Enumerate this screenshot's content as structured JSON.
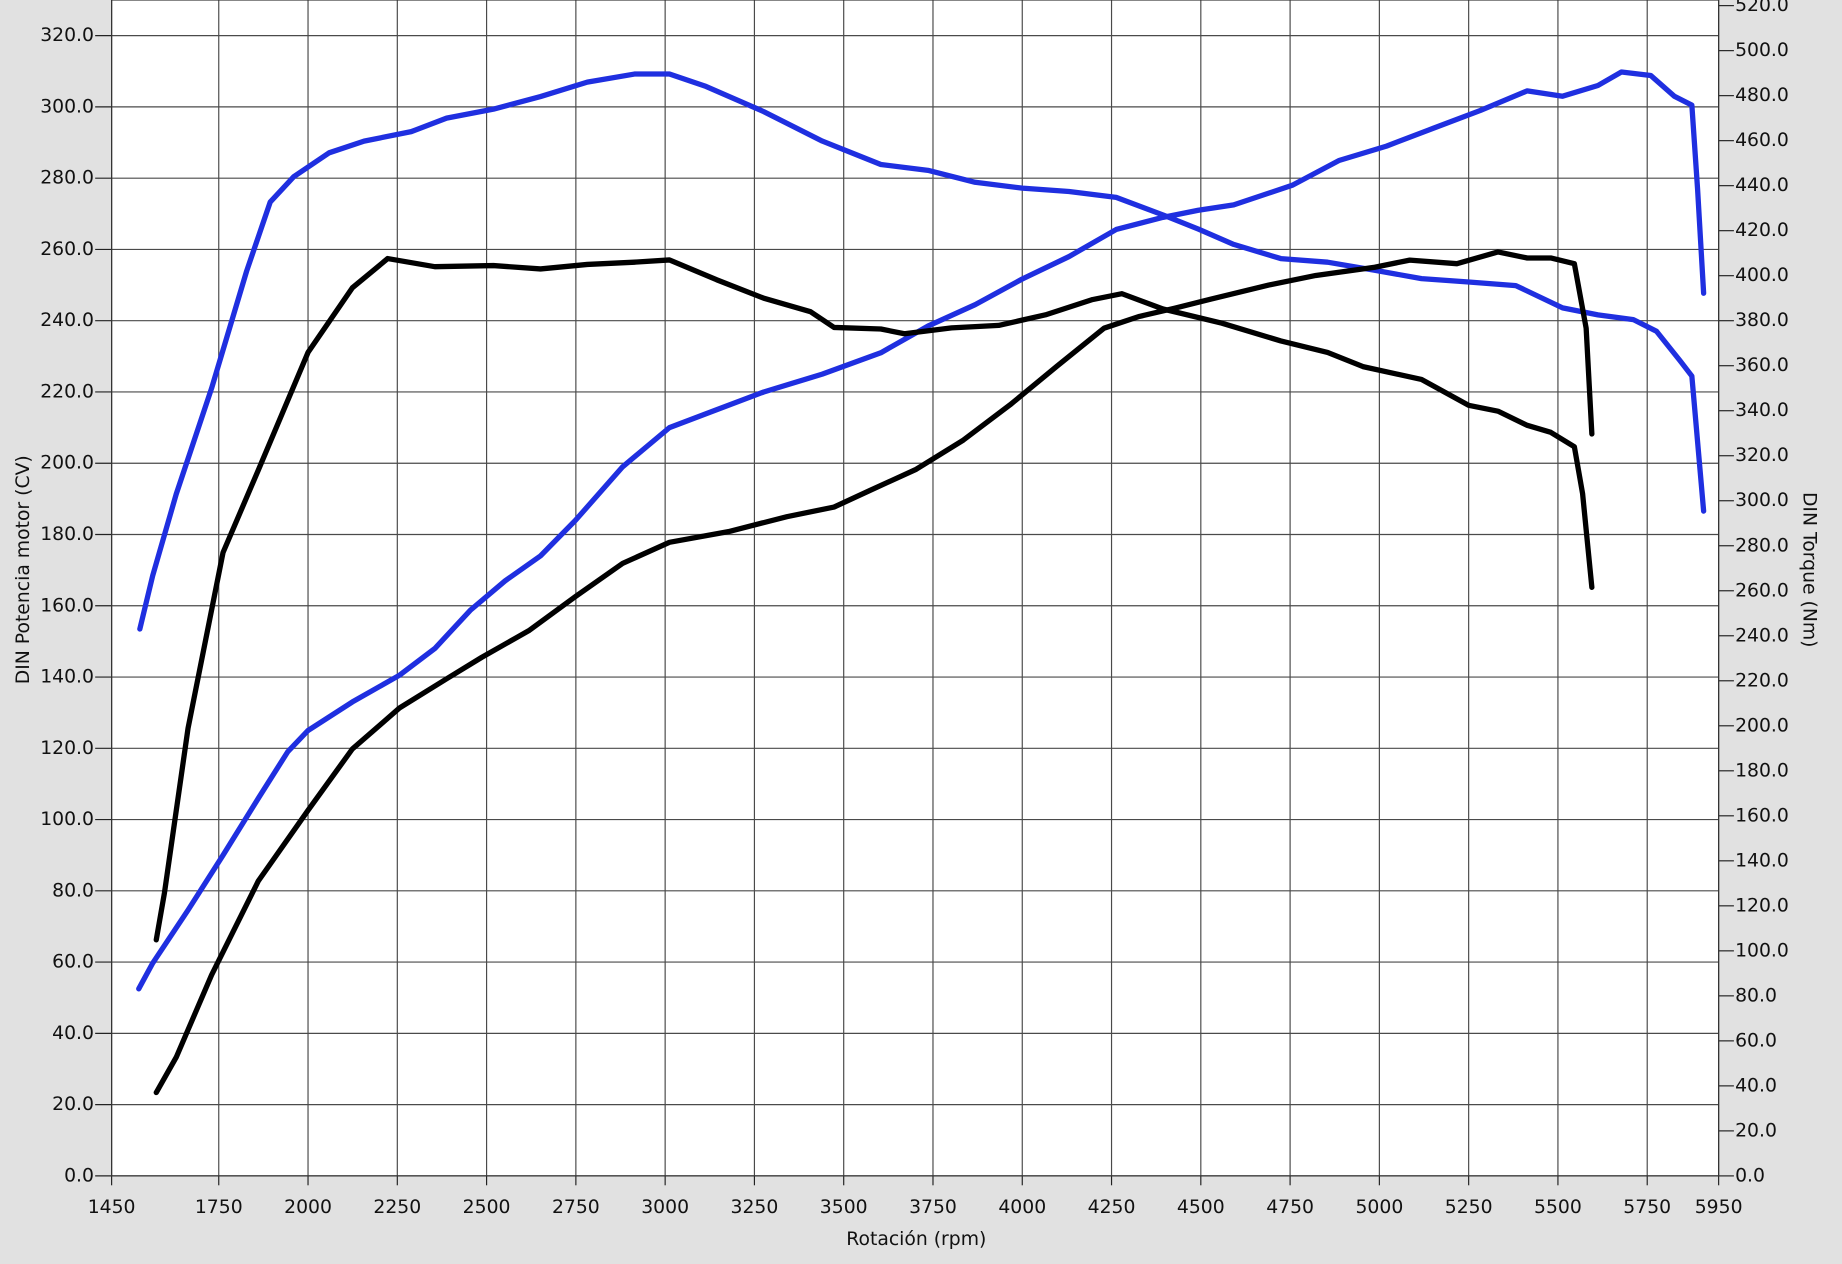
{
  "chart_data": {
    "type": "line",
    "x_label": "Rotación (rpm)",
    "y_label": "DIN Potencia motor (CV)",
    "y2_label": "DIN Torque (Nm)",
    "xlim": [
      1450,
      5950
    ],
    "xticks": [
      1450,
      1750,
      2000,
      2250,
      2500,
      2750,
      3000,
      3250,
      3500,
      3750,
      4000,
      4250,
      4500,
      4750,
      5000,
      5250,
      5500,
      5750,
      5950
    ],
    "ylim": [
      0,
      330
    ],
    "yticks": [
      {
        "value": 0,
        "label": "0.0"
      },
      {
        "value": 20,
        "label": "20.0"
      },
      {
        "value": 40,
        "label": "40.0"
      },
      {
        "value": 60,
        "label": "60.0"
      },
      {
        "value": 80,
        "label": "80.0"
      },
      {
        "value": 100,
        "label": "100.0"
      },
      {
        "value": 120,
        "label": "120.0"
      },
      {
        "value": 140,
        "label": "140.0"
      },
      {
        "value": 160,
        "label": "160.0"
      },
      {
        "value": 180,
        "label": "180.0"
      },
      {
        "value": 200,
        "label": "200.0"
      },
      {
        "value": 220,
        "label": "220.0"
      },
      {
        "value": 240,
        "label": "240.0"
      },
      {
        "value": 260,
        "label": "260.0"
      },
      {
        "value": 280,
        "label": "280.0"
      },
      {
        "value": 300,
        "label": "300.0"
      },
      {
        "value": 320,
        "label": "320.0"
      }
    ],
    "y2lim": [
      0,
      522.5
    ],
    "y2ticks": [
      {
        "value": 0,
        "label": "0.0"
      },
      {
        "value": 20,
        "label": "20.0"
      },
      {
        "value": 40,
        "label": "40.0"
      },
      {
        "value": 60,
        "label": "60.0"
      },
      {
        "value": 80,
        "label": "80.0"
      },
      {
        "value": 100,
        "label": "100.0"
      },
      {
        "value": 120,
        "label": "120.0"
      },
      {
        "value": 140,
        "label": "140.0"
      },
      {
        "value": 160,
        "label": "160.0"
      },
      {
        "value": 180,
        "label": "180.0"
      },
      {
        "value": 200,
        "label": "200.0"
      },
      {
        "value": 220,
        "label": "220.0"
      },
      {
        "value": 240,
        "label": "240.0"
      },
      {
        "value": 260,
        "label": "260.0"
      },
      {
        "value": 280,
        "label": "280.0"
      },
      {
        "value": 300,
        "label": "300.0"
      },
      {
        "value": 320,
        "label": "320.0"
      },
      {
        "value": 340,
        "label": "340.0"
      },
      {
        "value": 360,
        "label": "360.0"
      },
      {
        "value": 380,
        "label": "380.0"
      },
      {
        "value": 400,
        "label": "400.0"
      },
      {
        "value": 420,
        "label": "420.0"
      },
      {
        "value": 440,
        "label": "440.0"
      },
      {
        "value": 460,
        "label": "460.0"
      },
      {
        "value": 480,
        "label": "480.0"
      },
      {
        "value": 500,
        "label": "500.0"
      },
      {
        "value": 520,
        "label": "520.0"
      }
    ],
    "grid": true,
    "series": [
      {
        "color": "#1f2fe0",
        "axis": "y",
        "x": [
          1526,
          1565,
          1664,
          1762,
          1861,
          1943,
          2000,
          2124,
          2256,
          2355,
          2454,
          2552,
          2651,
          2749,
          2881,
          3012,
          3144,
          3276,
          3440,
          3604,
          3736,
          3868,
          4000,
          4131,
          4263,
          4394,
          4493,
          4592,
          4756,
          4888,
          5020,
          5151,
          5283,
          5414,
          5513,
          5612,
          5678,
          5760,
          5826,
          5875,
          5891,
          5908
        ],
        "values": [
          52.5,
          59.7,
          74.6,
          90,
          106,
          119,
          125,
          133,
          140.5,
          148,
          158.7,
          167,
          174,
          184,
          199,
          210,
          215,
          220,
          225,
          231,
          238.5,
          244.5,
          251.7,
          258,
          265.6,
          269,
          271,
          272.5,
          278,
          285,
          289,
          294,
          299,
          304.5,
          303,
          306,
          309.8,
          308.8,
          303,
          300.5,
          277,
          247.7
        ]
      },
      {
        "color": "#1f2fe0",
        "axis": "y2",
        "x": [
          1529,
          1565,
          1631,
          1730,
          1828,
          1894,
          1960,
          2059,
          2157,
          2289,
          2388,
          2519,
          2651,
          2782,
          2914,
          3012,
          3111,
          3276,
          3440,
          3604,
          3736,
          3868,
          4000,
          4131,
          4263,
          4394,
          4493,
          4592,
          4724,
          4855,
          4987,
          5118,
          5250,
          5382,
          5513,
          5612,
          5711,
          5776,
          5842,
          5875,
          5908
        ],
        "values": [
          243,
          266.7,
          303,
          350,
          402,
          432.7,
          444,
          454.6,
          459.8,
          464,
          470,
          474,
          479.6,
          486,
          489.6,
          489.6,
          484.3,
          472.9,
          459.8,
          449.4,
          446.8,
          441.5,
          438.9,
          437.4,
          434.8,
          427,
          420.7,
          413.9,
          407.6,
          406,
          402.4,
          398.7,
          397.2,
          395.6,
          385.7,
          382.6,
          380.5,
          375.3,
          362.2,
          355.4,
          295.4
        ]
      },
      {
        "color": "#000000",
        "axis": "y",
        "x": [
          1575,
          1631,
          1730,
          1861,
          2000,
          2124,
          2256,
          2388,
          2486,
          2618,
          2749,
          2881,
          3012,
          3177,
          3341,
          3473,
          3572,
          3703,
          3835,
          3966,
          4098,
          4229,
          4328,
          4427,
          4526,
          4690,
          4822,
          4987,
          5085,
          5217,
          5332,
          5414,
          5480,
          5546,
          5579,
          5595
        ],
        "values": [
          23.4,
          33.3,
          56.4,
          82.8,
          102.6,
          119.8,
          131.3,
          139.5,
          145.5,
          153,
          162.6,
          171.9,
          177.8,
          180.8,
          185,
          187.7,
          192.3,
          198.3,
          206.5,
          216.4,
          227.3,
          237.9,
          241.2,
          243.5,
          246,
          250,
          252.7,
          255,
          257,
          256,
          259.3,
          257.6,
          257.6,
          256,
          237.9,
          208.2
        ]
      },
      {
        "color": "#000000",
        "axis": "y2",
        "x": [
          1575,
          1598,
          1664,
          1762,
          1861,
          2000,
          2124,
          2223,
          2355,
          2519,
          2651,
          2782,
          2914,
          3012,
          3144,
          3276,
          3407,
          3473,
          3604,
          3670,
          3802,
          3934,
          4065,
          4197,
          4279,
          4394,
          4559,
          4724,
          4855,
          4954,
          5118,
          5250,
          5332,
          5414,
          5480,
          5546,
          5569,
          5595
        ],
        "values": [
          104.9,
          125.8,
          198.9,
          277,
          313.7,
          365.9,
          394.6,
          407.6,
          404,
          404.5,
          403,
          405,
          406,
          407,
          398.2,
          390,
          384,
          377,
          376.3,
          374.2,
          376.8,
          377.9,
          382.6,
          389.4,
          392,
          385.2,
          378.9,
          371,
          365.9,
          359.6,
          353.9,
          342.4,
          339.8,
          333.5,
          330.4,
          324,
          303.2,
          261.5
        ]
      }
    ]
  }
}
